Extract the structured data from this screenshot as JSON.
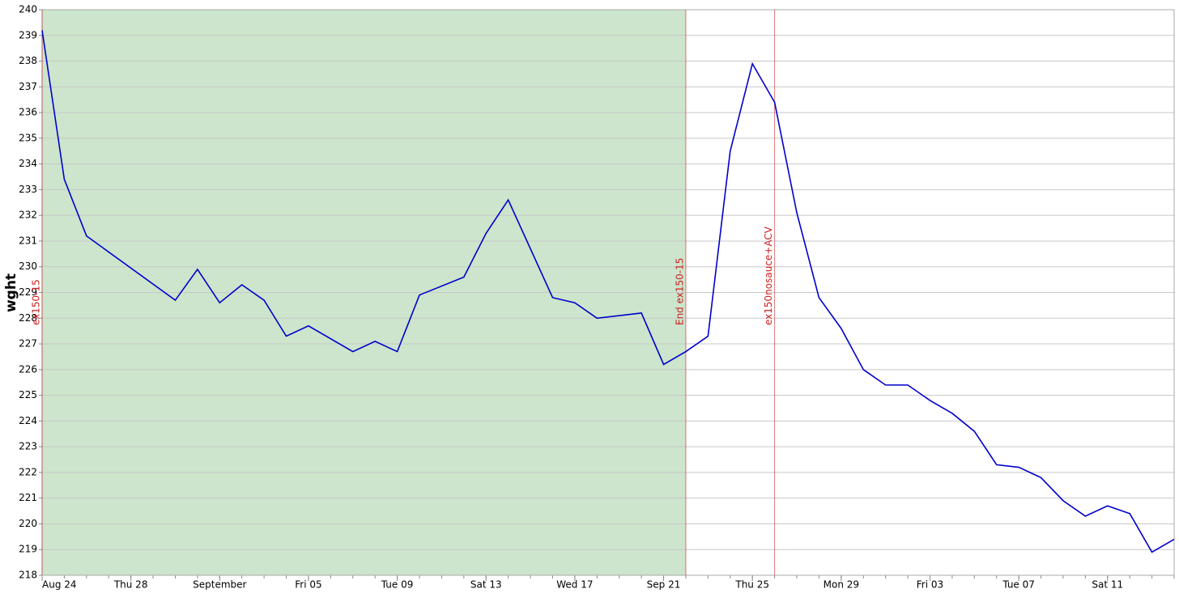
{
  "chart_data": {
    "type": "line",
    "ylabel": "wght",
    "x": [
      "08-24",
      "08-25",
      "08-26",
      "08-30",
      "08-31",
      "09-01",
      "09-02",
      "09-03",
      "09-04",
      "09-05",
      "09-07",
      "09-08",
      "09-09",
      "09-10",
      "09-12",
      "09-13",
      "09-14",
      "09-16",
      "09-17",
      "09-18",
      "09-20",
      "09-21",
      "09-22",
      "09-23",
      "09-24",
      "09-25",
      "09-26",
      "09-27",
      "09-28",
      "09-29",
      "09-30",
      "10-01",
      "10-02",
      "10-03",
      "10-04",
      "10-05",
      "10-06",
      "10-07",
      "10-08",
      "10-09",
      "10-10",
      "10-11",
      "10-12",
      "10-13",
      "10-14"
    ],
    "series": [
      {
        "name": "wght",
        "color": "#0000cc",
        "values": [
          239.2,
          233.4,
          231.2,
          228.7,
          229.9,
          228.6,
          229.3,
          228.7,
          227.3,
          227.7,
          226.7,
          227.1,
          226.7,
          228.9,
          229.6,
          231.3,
          232.6,
          228.8,
          228.6,
          228.0,
          228.2,
          226.2,
          226.7,
          227.3,
          234.5,
          237.9,
          236.4,
          232.1,
          228.8,
          227.6,
          226.0,
          225.4,
          225.4,
          224.8,
          224.3,
          223.6,
          222.3,
          222.2,
          221.8,
          220.9,
          220.3,
          220.7,
          220.4,
          218.9,
          219.4
        ]
      }
    ],
    "xlim": [
      "08-24",
      "10-14"
    ],
    "xticks": [
      {
        "value": "08-24",
        "label": "Aug 24"
      },
      {
        "value": "08-28",
        "label": "Thu 28"
      },
      {
        "value": "09-01",
        "label": "September"
      },
      {
        "value": "09-05",
        "label": "Fri 05"
      },
      {
        "value": "09-09",
        "label": "Tue 09"
      },
      {
        "value": "09-13",
        "label": "Sat 13"
      },
      {
        "value": "09-17",
        "label": "Wed 17"
      },
      {
        "value": "09-21",
        "label": "Sep 21"
      },
      {
        "value": "09-25",
        "label": "Thu 25"
      },
      {
        "value": "09-29",
        "label": "Mon 29"
      },
      {
        "value": "10-03",
        "label": "Fri 03"
      },
      {
        "value": "10-07",
        "label": "Tue 07"
      },
      {
        "value": "10-11",
        "label": "Sat 11"
      }
    ],
    "ylim": [
      218,
      240
    ],
    "yticks": [
      218,
      219,
      220,
      221,
      222,
      223,
      224,
      225,
      226,
      227,
      228,
      229,
      230,
      231,
      232,
      233,
      234,
      235,
      236,
      237,
      238,
      239,
      240
    ],
    "grid": true,
    "shaded_region": {
      "x": [
        "08-24",
        "09-22"
      ],
      "color": "#cce5cc"
    },
    "annotations": [
      {
        "x": "08-24",
        "label": "ex150-15",
        "color": "#cc2222"
      },
      {
        "x": "09-22",
        "label": "End ex150-15",
        "color": "#cc2222"
      },
      {
        "x": "09-26",
        "label": "ex150nosauce+ACV",
        "color": "#cc2222"
      }
    ]
  }
}
